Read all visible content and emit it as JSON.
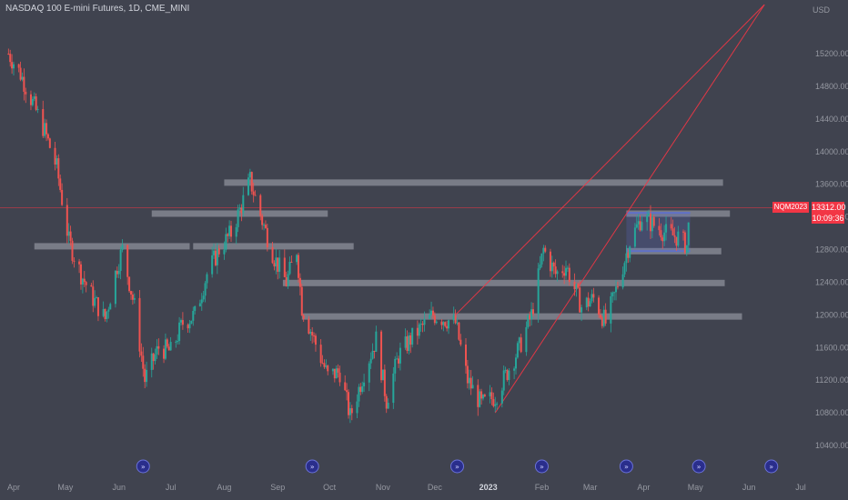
{
  "header": {
    "title": "NASDAQ 100 E-mini Futures, 1D, CME_MINI",
    "currency": "USD"
  },
  "price_badges": {
    "symbol": "NQM2023",
    "last_price": "13312.00",
    "countdown": "10:09:36"
  },
  "colors": {
    "background": "#40434f",
    "up_candle": "#26a69a",
    "down_candle": "#ef5350",
    "trend_line": "#f23645",
    "zone": "#8c8f99",
    "range_box": "#5b6fd6",
    "event_icon": "#2a2e8c"
  },
  "chart_data": {
    "type": "candlestick",
    "symbol": "NASDAQ 100 E-mini Futures",
    "interval": "1D",
    "exchange": "CME_MINI",
    "ylim": [
      10300,
      15600
    ],
    "y_ticks": [
      "15200.00",
      "14800.00",
      "14400.00",
      "14000.00",
      "13600.00",
      "13200.00",
      "12800.00",
      "12400.00",
      "12000.00",
      "11600.00",
      "11200.00",
      "10800.00",
      "10400.00"
    ],
    "x_ticks": [
      "Apr",
      "May",
      "Jun",
      "Jul",
      "Aug",
      "Sep",
      "Oct",
      "Nov",
      "Dec",
      "2023",
      "Feb",
      "Mar",
      "Apr",
      "May",
      "Jun",
      "Jul"
    ],
    "x_ticks_bold": [
      "2023"
    ],
    "last_price": 13312.0,
    "price_path": [
      [
        "2022-03-29",
        15200
      ],
      [
        "2022-04-05",
        14950
      ],
      [
        "2022-04-12",
        14600
      ],
      [
        "2022-04-19",
        14250
      ],
      [
        "2022-04-26",
        13800
      ],
      [
        "2022-05-03",
        12900
      ],
      [
        "2022-05-10",
        12500
      ],
      [
        "2022-05-17",
        12200
      ],
      [
        "2022-05-24",
        11950
      ],
      [
        "2022-05-31",
        12600
      ],
      [
        "2022-06-03",
        12800
      ],
      [
        "2022-06-10",
        12100
      ],
      [
        "2022-06-16",
        11200
      ],
      [
        "2022-06-24",
        11600
      ],
      [
        "2022-07-01",
        11550
      ],
      [
        "2022-07-08",
        11900
      ],
      [
        "2022-07-15",
        12000
      ],
      [
        "2022-07-22",
        12500
      ],
      [
        "2022-07-29",
        12800
      ],
      [
        "2022-08-05",
        13000
      ],
      [
        "2022-08-12",
        13400
      ],
      [
        "2022-08-16",
        13650
      ],
      [
        "2022-08-23",
        13150
      ],
      [
        "2022-08-30",
        12700
      ],
      [
        "2022-09-06",
        12400
      ],
      [
        "2022-09-12",
        12800
      ],
      [
        "2022-09-15",
        12100
      ],
      [
        "2022-09-22",
        11700
      ],
      [
        "2022-09-30",
        11250
      ],
      [
        "2022-10-07",
        11300
      ],
      [
        "2022-10-13",
        10750
      ],
      [
        "2022-10-21",
        11300
      ],
      [
        "2022-10-28",
        11700
      ],
      [
        "2022-11-03",
        10950
      ],
      [
        "2022-11-10",
        11500
      ],
      [
        "2022-11-17",
        11700
      ],
      [
        "2022-11-30",
        12000
      ],
      [
        "2022-12-13",
        11900
      ],
      [
        "2022-12-20",
        11200
      ],
      [
        "2022-12-28",
        10900
      ],
      [
        "2023-01-05",
        11000
      ],
      [
        "2023-01-12",
        11300
      ],
      [
        "2023-01-19",
        11600
      ],
      [
        "2023-01-26",
        12000
      ],
      [
        "2023-02-02",
        12800
      ],
      [
        "2023-02-09",
        12500
      ],
      [
        "2023-02-15",
        12600
      ],
      [
        "2023-02-24",
        12100
      ],
      [
        "2023-03-03",
        12200
      ],
      [
        "2023-03-10",
        11900
      ],
      [
        "2023-03-16",
        12300
      ],
      [
        "2023-03-24",
        12900
      ],
      [
        "2023-03-31",
        13200
      ],
      [
        "2023-04-07",
        13100
      ],
      [
        "2023-04-14",
        13000
      ],
      [
        "2023-04-21",
        12950
      ],
      [
        "2023-04-26",
        12850
      ],
      [
        "2023-04-28",
        13312
      ]
    ],
    "zones": [
      {
        "from": "2022-08-01",
        "to": "2023-05-17",
        "price": 13620
      },
      {
        "from": "2022-06-20",
        "to": "2022-09-30",
        "price": 13240
      },
      {
        "from": "2023-03-22",
        "to": "2023-05-21",
        "price": 13240
      },
      {
        "from": "2022-04-13",
        "to": "2022-07-12",
        "price": 12840
      },
      {
        "from": "2022-07-14",
        "to": "2022-10-15",
        "price": 12840
      },
      {
        "from": "2023-03-22",
        "to": "2023-05-16",
        "price": 12780
      },
      {
        "from": "2022-09-04",
        "to": "2023-05-18",
        "price": 12390
      },
      {
        "from": "2022-09-15",
        "to": "2023-05-28",
        "price": 11980
      }
    ],
    "range_box": {
      "from": "2023-03-22",
      "to": "2023-04-28",
      "top": 13250,
      "bottom": 12780
    },
    "trend_lines": [
      {
        "from": [
          "2023-01-05",
          10800
        ],
        "to": [
          "2023-06-10",
          15800
        ]
      },
      {
        "from": [
          "2022-12-13",
          12000
        ],
        "to": [
          "2023-06-10",
          15800
        ]
      }
    ],
    "event_markers": [
      "2022-06-15",
      "2022-09-21",
      "2022-12-14",
      "2023-02-01",
      "2023-03-22",
      "2023-05-03",
      "2023-06-14"
    ]
  }
}
